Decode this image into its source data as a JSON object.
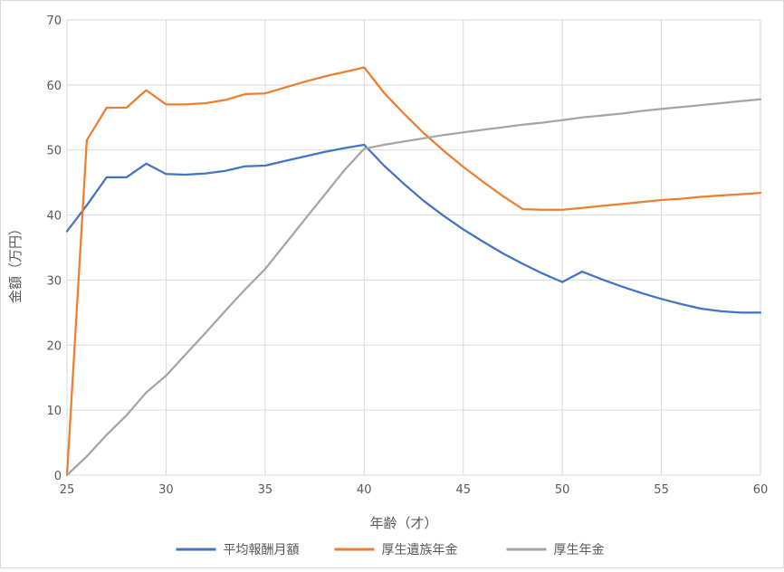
{
  "chart_data": {
    "type": "line",
    "xlabel": "年齢（才）",
    "ylabel": "金額（万円）",
    "xlim": [
      25,
      60
    ],
    "ylim": [
      0,
      70
    ],
    "xticks": [
      25,
      30,
      35,
      40,
      45,
      50,
      55,
      60
    ],
    "yticks": [
      0,
      10,
      20,
      30,
      40,
      50,
      60,
      70
    ],
    "grid": true,
    "legend_position": "bottom",
    "series": [
      {
        "name": "平均報酬月額",
        "color": "#4472C4",
        "x": [
          25,
          26,
          27,
          28,
          29,
          30,
          31,
          32,
          33,
          34,
          35,
          36,
          37,
          38,
          39,
          40,
          41,
          42,
          43,
          44,
          45,
          46,
          47,
          48,
          49,
          50,
          51,
          52,
          53,
          54,
          55,
          56,
          57,
          58,
          59,
          60
        ],
        "y": [
          37.5,
          41.5,
          45.8,
          45.8,
          47.9,
          46.3,
          46.2,
          46.4,
          46.8,
          47.5,
          47.6,
          48.3,
          49.0,
          49.7,
          50.3,
          50.8,
          47.6,
          44.8,
          42.2,
          39.9,
          37.8,
          35.9,
          34.1,
          32.5,
          31.0,
          29.7,
          31.3,
          30.1,
          29.0,
          28.0,
          27.1,
          26.3,
          25.6,
          25.2,
          25.0,
          25.0
        ]
      },
      {
        "name": "厚生遺族年金",
        "color": "#ED7D31",
        "x": [
          25,
          26,
          27,
          28,
          29,
          30,
          31,
          32,
          33,
          34,
          35,
          36,
          37,
          38,
          39,
          40,
          41,
          42,
          43,
          44,
          45,
          46,
          47,
          48,
          49,
          50,
          51,
          52,
          53,
          54,
          55,
          56,
          57,
          58,
          59,
          60
        ],
        "y": [
          0,
          51.5,
          56.5,
          56.5,
          59.2,
          57.0,
          57.0,
          57.2,
          57.7,
          58.6,
          58.7,
          59.6,
          60.5,
          61.3,
          62.0,
          62.7,
          58.8,
          55.6,
          52.6,
          49.9,
          47.4,
          45.1,
          42.9,
          40.9,
          40.8,
          40.8,
          41.1,
          41.4,
          41.7,
          42.0,
          42.3,
          42.5,
          42.8,
          43.0,
          43.2,
          43.4
        ]
      },
      {
        "name": "厚生年金",
        "color": "#A5A5A5",
        "x": [
          25,
          26,
          27,
          28,
          29,
          30,
          31,
          32,
          33,
          34,
          35,
          36,
          37,
          38,
          39,
          40,
          41,
          42,
          43,
          44,
          45,
          46,
          47,
          48,
          49,
          50,
          51,
          52,
          53,
          54,
          55,
          56,
          57,
          58,
          59,
          60
        ],
        "y": [
          0,
          2.9,
          6.2,
          9.2,
          12.7,
          15.3,
          18.6,
          21.9,
          25.3,
          28.6,
          31.7,
          35.5,
          39.3,
          43.1,
          46.9,
          50.2,
          50.8,
          51.3,
          51.8,
          52.3,
          52.7,
          53.1,
          53.5,
          53.9,
          54.2,
          54.6,
          55.0,
          55.3,
          55.6,
          56.0,
          56.3,
          56.6,
          56.9,
          57.2,
          57.5,
          57.8
        ]
      }
    ]
  }
}
